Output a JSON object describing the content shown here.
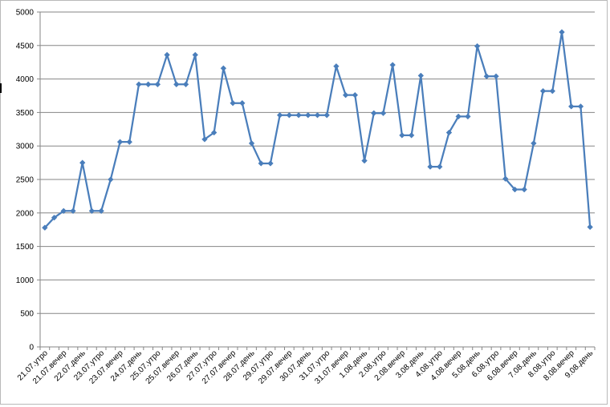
{
  "chart_data": {
    "type": "line",
    "title": "",
    "xlabel": "",
    "ylabel": "",
    "ylim": [
      0,
      5000
    ],
    "yticks": [
      0,
      500,
      1000,
      1500,
      2000,
      2500,
      3000,
      3500,
      4000,
      4500,
      5000
    ],
    "grid": true,
    "legend": "none",
    "colors": {
      "line": "#4a7ebb",
      "grid": "#868686",
      "axis": "#868686"
    },
    "categories": [
      "21.07.утро",
      "21.07.день",
      "21.07.вечер",
      "22.07.утро",
      "22.07.день",
      "22.07.вечер",
      "23.07.утро",
      "23.07.день",
      "23.07.вечер",
      "24.07.утро",
      "24.07.день",
      "24.07.вечер",
      "25.07.утро",
      "25.07.день",
      "25.07.вечер",
      "26.07.утро",
      "26.07.день",
      "26.07.вечер",
      "27.07.утро",
      "27.07.день",
      "27.07.вечер",
      "28.07.утро",
      "28.07.день",
      "28.07.вечер",
      "29.07.утро",
      "29.07.день",
      "29.07.вечер",
      "30.07.утро",
      "30.07.день",
      "30.07.вечер",
      "31.07.утро",
      "31.07.день",
      "31.07.вечер",
      "1.08.утро",
      "1.08.день",
      "1.08.вечер",
      "2.08.утро",
      "2.08.день",
      "2.08.вечер",
      "3.08.утро",
      "3.08.день",
      "3.08.вечер",
      "4.08.утро",
      "4.08.день",
      "4.08.вечер",
      "5.08.утро",
      "5.08.день",
      "5.08.вечер",
      "6.08.утро",
      "6.08.день",
      "6.08.вечер",
      "7.08.утро",
      "7.08.день",
      "7.08.вечер",
      "8.08.утро",
      "8.08.день",
      "8.08.вечер",
      "9.08.утро",
      "9.08.день"
    ],
    "series": [
      {
        "values": [
          1780,
          1930,
          2030,
          2030,
          2750,
          2030,
          2030,
          2500,
          3060,
          3060,
          3920,
          3920,
          3920,
          4360,
          3920,
          3920,
          4360,
          3100,
          3200,
          4160,
          3640,
          3640,
          3040,
          2740,
          2740,
          3460,
          3460,
          3460,
          3460,
          3460,
          3460,
          4190,
          3760,
          3760,
          2780,
          3490,
          3490,
          4210,
          3160,
          3160,
          4050,
          2690,
          2690,
          3200,
          3440,
          3440,
          4490,
          4040,
          4040,
          2510,
          2350,
          2350,
          3040,
          3820,
          3820,
          4700,
          3590,
          3590,
          1790
        ]
      }
    ]
  }
}
